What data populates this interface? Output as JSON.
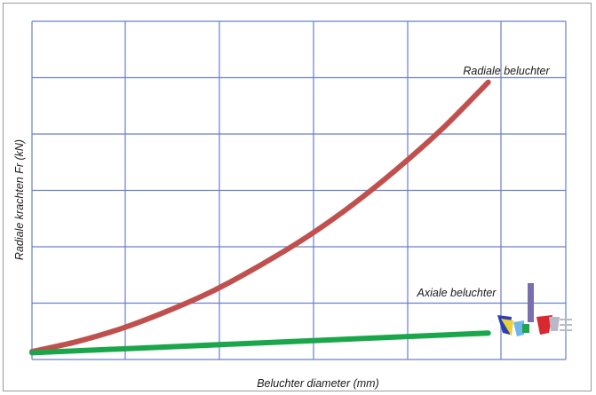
{
  "chart_data": {
    "type": "line",
    "title": "",
    "xlabel": "Beluchter diameter (mm)",
    "ylabel": "Radiale krachten Fr (kN)",
    "xlim": [
      0,
      5.85
    ],
    "ylim": [
      0,
      6
    ],
    "grid": true,
    "series": [
      {
        "name": "Radiale beluchter",
        "color": "#c0504d",
        "x": [
          0,
          0.5,
          1,
          1.5,
          2,
          2.5,
          3,
          3.5,
          4,
          4.5,
          5
        ],
        "y": [
          0.14,
          0.32,
          0.56,
          0.87,
          1.23,
          1.67,
          2.16,
          2.73,
          3.38,
          4.1,
          4.92
        ]
      },
      {
        "name": "Axiale beluchter",
        "color": "#1aa64b",
        "x": [
          0,
          5
        ],
        "y": [
          0.12,
          0.47
        ]
      }
    ]
  },
  "icon": "fan-icon",
  "colors": {
    "grid": "#6b7fc4",
    "frame": "#9a9a9a",
    "background": "#ffffff"
  }
}
